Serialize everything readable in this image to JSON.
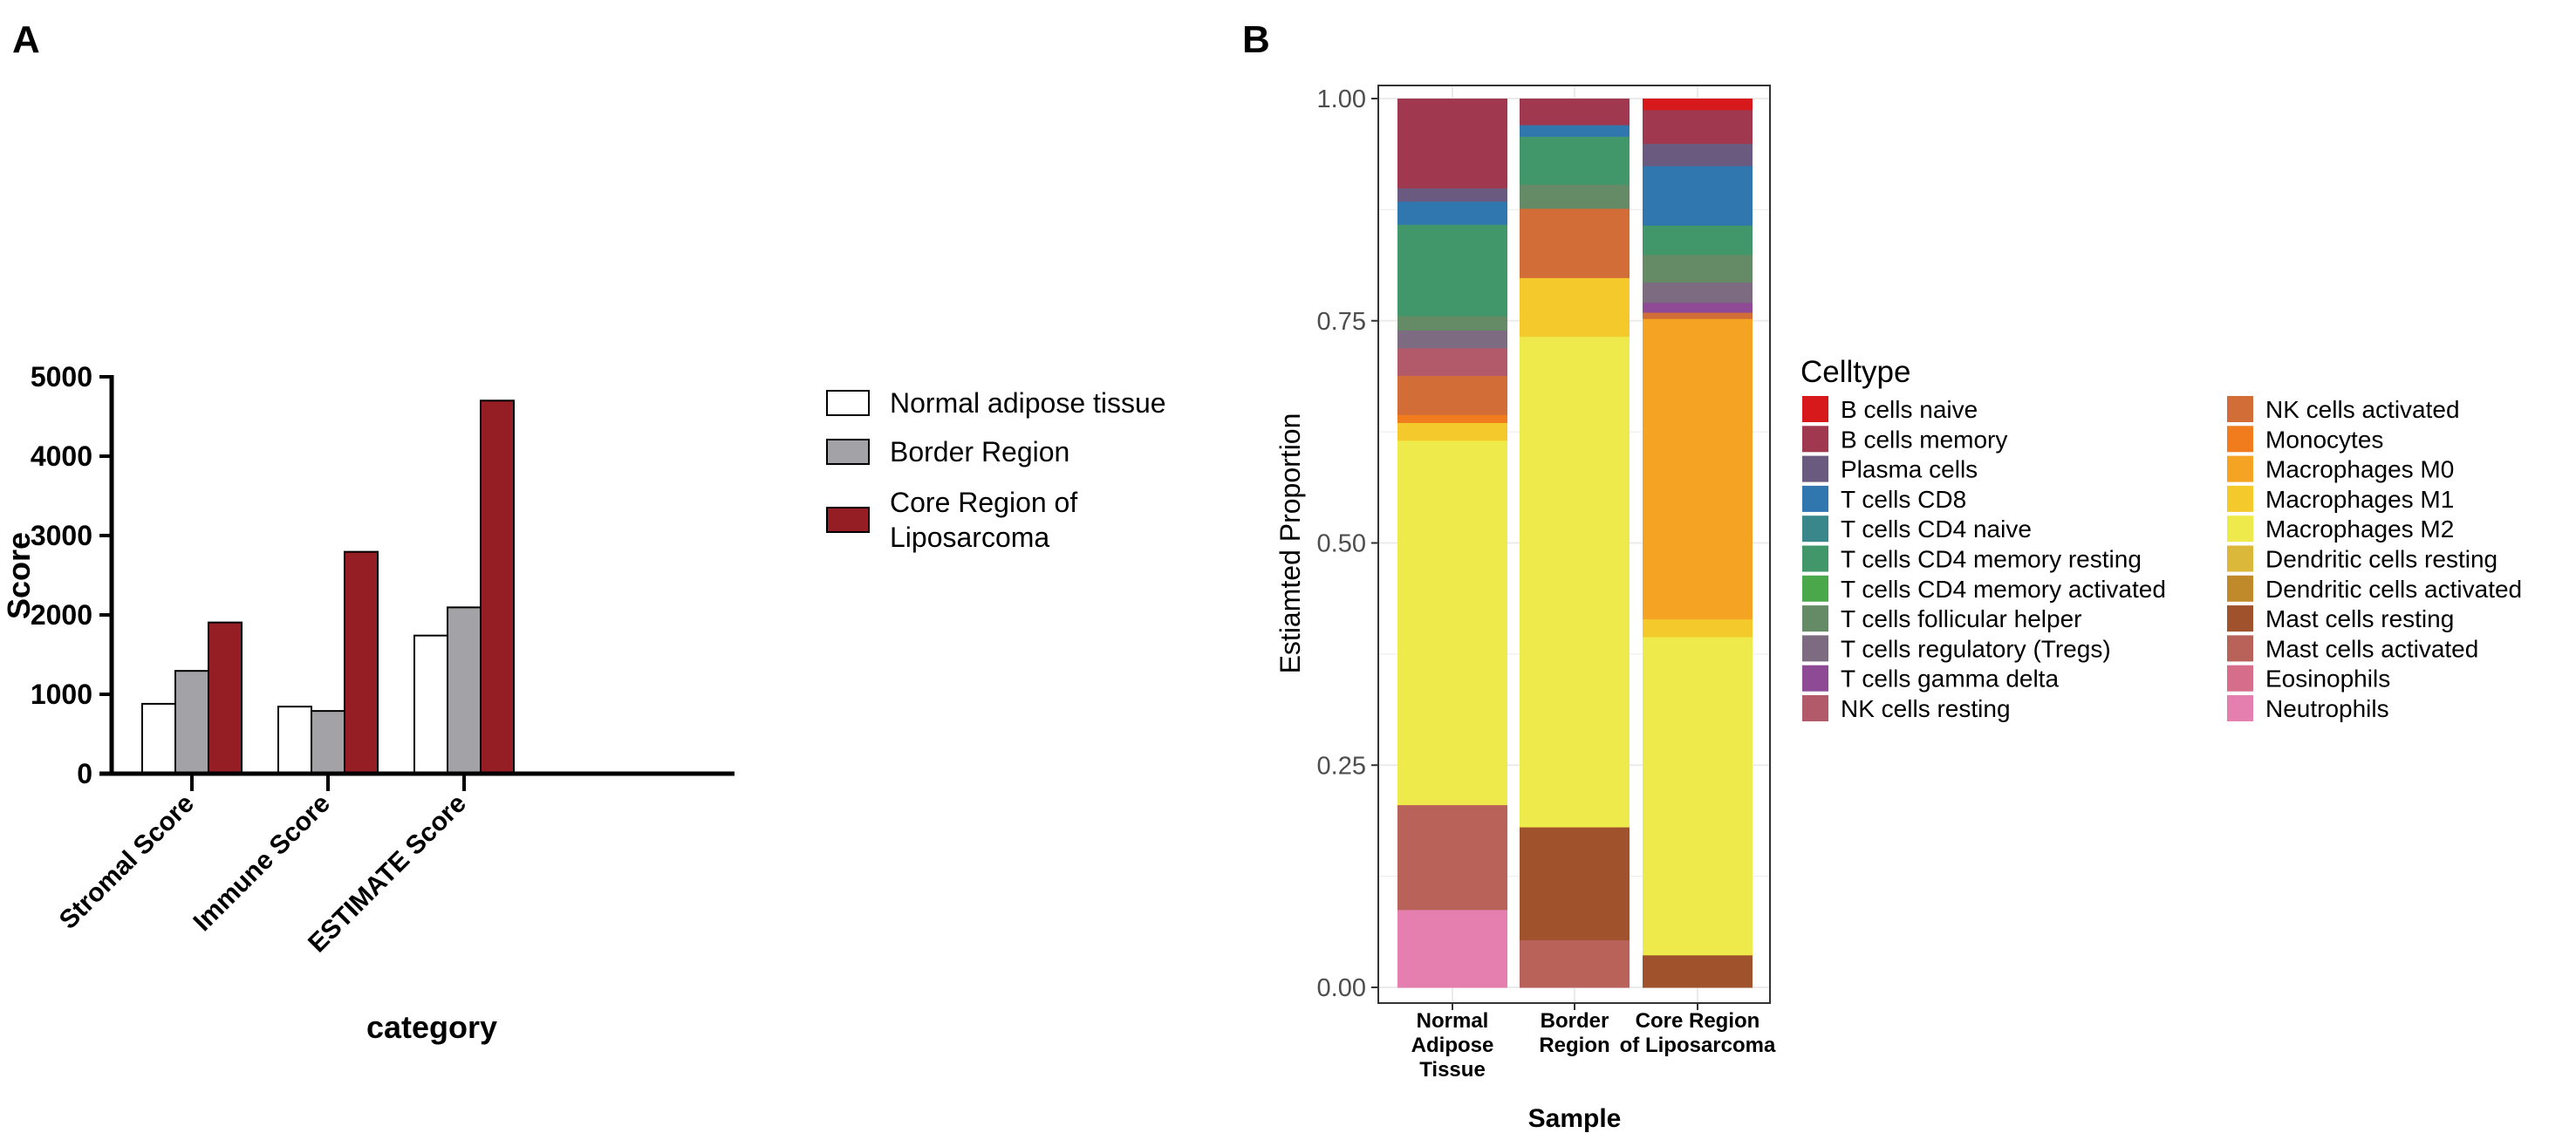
{
  "panel_labels": {
    "a": "A",
    "b": "B"
  },
  "chart_data": [
    {
      "type": "bar",
      "panel": "A",
      "xlabel": "category",
      "ylabel": "Score",
      "ylim": [
        0,
        5000
      ],
      "yticks": [
        0,
        1000,
        2000,
        3000,
        4000,
        5000
      ],
      "categories": [
        "Stromal Score",
        "Immune Score",
        "ESTIMATE Score"
      ],
      "legend_position": "right",
      "series": [
        {
          "name": "Normal adipose tissue",
          "color": "#ffffff",
          "values": [
            880,
            845,
            1740
          ]
        },
        {
          "name": "Border Region",
          "color": "#a3a3a7",
          "values": [
            1295,
            790,
            2095
          ]
        },
        {
          "name": "Core Region of Liposarcoma",
          "name_lines": [
            "Core Region of",
            "Liposarcoma"
          ],
          "color": "#951e25",
          "values": [
            1905,
            2795,
            4700
          ]
        }
      ]
    },
    {
      "type": "bar",
      "stacked": true,
      "panel": "B",
      "xlabel": "Sample",
      "ylabel": "Estiamted Proportion",
      "ylim": [
        0,
        1
      ],
      "yticks": [
        "0.00",
        "0.25",
        "0.50",
        "0.75",
        "1.00"
      ],
      "grid": true,
      "legend_title": "Celltype",
      "legend_position": "right",
      "categories": [
        {
          "lines": [
            "Normal",
            "Adipose",
            "Tissue"
          ]
        },
        {
          "lines": [
            "Border",
            "Region"
          ]
        },
        {
          "lines": [
            "Core Region",
            "of Liposarcoma"
          ]
        }
      ],
      "series": [
        {
          "name": "B cells naive",
          "color": "#d7191c",
          "values": [
            0,
            0,
            0.013
          ]
        },
        {
          "name": "B cells memory",
          "color": "#a0394f",
          "values": [
            0.101,
            0.03,
            0.038
          ]
        },
        {
          "name": "Plasma cells",
          "color": "#6b5a7f",
          "values": [
            0.015,
            0,
            0.025
          ]
        },
        {
          "name": "T cells CD8",
          "color": "#3077b0",
          "values": [
            0.026,
            0.013,
            0.067
          ]
        },
        {
          "name": "T cells CD4 naive",
          "color": "#39878a",
          "values": [
            0,
            0,
            0
          ]
        },
        {
          "name": "T cells CD4 memory resting",
          "color": "#42976a",
          "values": [
            0.103,
            0.054,
            0.033
          ]
        },
        {
          "name": "T cells CD4 memory activated",
          "color": "#4aa84a",
          "values": [
            0,
            0,
            0
          ]
        },
        {
          "name": "T cells follicular helper",
          "color": "#658a66",
          "values": [
            0.016,
            0.027,
            0.031
          ]
        },
        {
          "name": "T cells regulatory (Tregs)",
          "color": "#7d6b82",
          "values": [
            0.02,
            0,
            0.023
          ]
        },
        {
          "name": "T cells gamma delta",
          "color": "#8f4a96",
          "values": [
            0,
            0,
            0.011
          ]
        },
        {
          "name": "NK cells resting",
          "color": "#b25a69",
          "values": [
            0.031,
            0,
            0
          ]
        },
        {
          "name": "NK cells activated",
          "color": "#d36d38",
          "values": [
            0.044,
            0.078,
            0.007
          ]
        },
        {
          "name": "Monocytes",
          "color": "#f07c1e",
          "values": [
            0.009,
            0,
            0
          ]
        },
        {
          "name": "Macrophages M0",
          "color": "#f4a322",
          "values": [
            0,
            0,
            0.338
          ]
        },
        {
          "name": "Macrophages M1",
          "color": "#f4c92b",
          "values": [
            0.02,
            0.066,
            0.02
          ]
        },
        {
          "name": "Macrophages M2",
          "color": "#eeea4b",
          "values": [
            0.41,
            0.552,
            0.358
          ]
        },
        {
          "name": "Dendritic cells resting",
          "color": "#dcb83a",
          "values": [
            0,
            0,
            0
          ]
        },
        {
          "name": "Dendritic cells activated",
          "color": "#c08a2a",
          "values": [
            0,
            0,
            0
          ]
        },
        {
          "name": "Mast cells resting",
          "color": "#a0522c",
          "values": [
            0,
            0.127,
            0.036
          ]
        },
        {
          "name": "Mast cells activated",
          "color": "#b8625a",
          "values": [
            0.118,
            0.053,
            0
          ]
        },
        {
          "name": "Eosinophils",
          "color": "#d66d8a",
          "values": [
            0,
            0,
            0
          ]
        },
        {
          "name": "Neutrophils",
          "color": "#e47fb0",
          "values": [
            0.087,
            0,
            0
          ]
        }
      ]
    }
  ]
}
